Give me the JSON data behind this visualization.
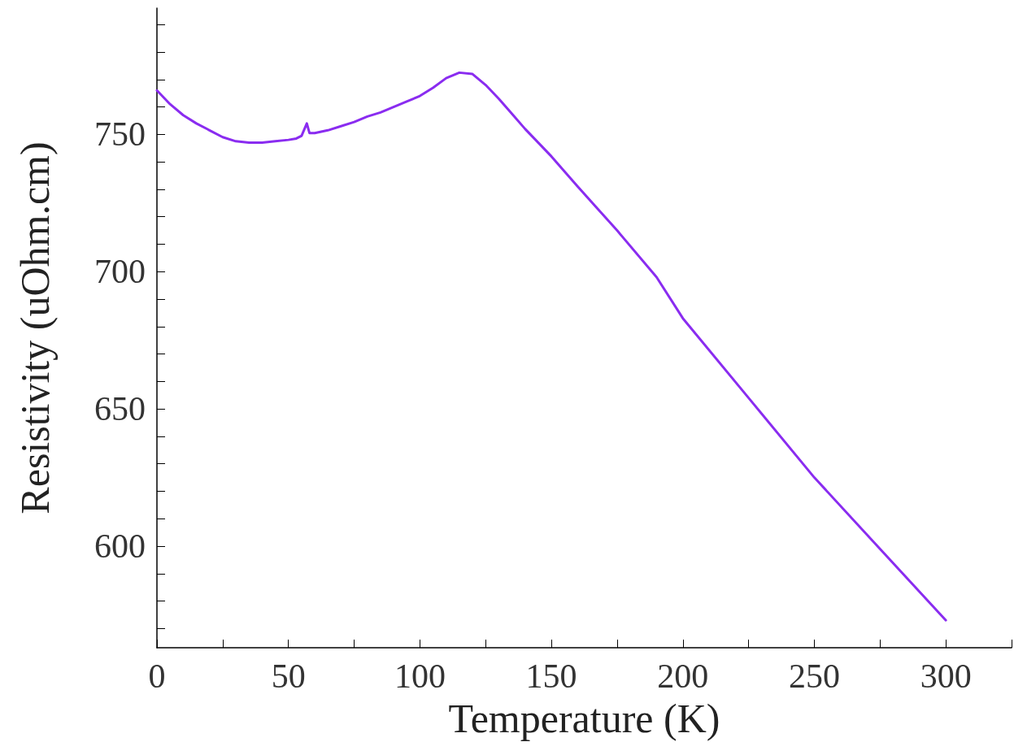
{
  "chart_data": {
    "type": "line",
    "xlabel": "Temperature (K)",
    "ylabel": "Resistivity (uOhm.cm)",
    "x": [
      0,
      5,
      10,
      15,
      20,
      25,
      30,
      35,
      40,
      45,
      50,
      53,
      55,
      57,
      58,
      60,
      65,
      70,
      75,
      80,
      85,
      90,
      95,
      100,
      105,
      110,
      115,
      120,
      125,
      130,
      135,
      140,
      150,
      160,
      175,
      190,
      200,
      225,
      250,
      275,
      300
    ],
    "series": [
      {
        "color": "#8a2cf0",
        "values": [
          766,
          761,
          757,
          754,
          751.5,
          749,
          747.5,
          747,
          747,
          747.5,
          748,
          748.5,
          749.5,
          754,
          750.5,
          750.5,
          751.5,
          753,
          754.5,
          756.5,
          758,
          760,
          762,
          764,
          767,
          770.5,
          772.5,
          772,
          768,
          763,
          757.5,
          752,
          742,
          731,
          715,
          698,
          683,
          654,
          625,
          599,
          573
        ]
      }
    ],
    "xlim": [
      0,
      325
    ],
    "ylim": [
      563,
      796
    ],
    "xticks": [
      0,
      {
        "value": 25,
        "label": null
      },
      50,
      {
        "value": 75,
        "label": null
      },
      100,
      {
        "value": 125,
        "label": null
      },
      150,
      {
        "value": 175,
        "label": null
      },
      200,
      {
        "value": 225,
        "label": null
      },
      250,
      {
        "value": 275,
        "label": null
      },
      300,
      {
        "value": 325,
        "label": null
      }
    ],
    "yticks": [
      {
        "value": 570,
        "label": null
      },
      {
        "value": 580,
        "label": null
      },
      {
        "value": 590,
        "label": null
      },
      600,
      {
        "value": 610,
        "label": null
      },
      {
        "value": 620,
        "label": null
      },
      {
        "value": 630,
        "label": null
      },
      {
        "value": 640,
        "label": null
      },
      650,
      {
        "value": 660,
        "label": null
      },
      {
        "value": 670,
        "label": null
      },
      {
        "value": 680,
        "label": null
      },
      {
        "value": 690,
        "label": null
      },
      700,
      {
        "value": 710,
        "label": null
      },
      {
        "value": 720,
        "label": null
      },
      {
        "value": 730,
        "label": null
      },
      {
        "value": 740,
        "label": null
      },
      750,
      {
        "value": 760,
        "label": null
      },
      {
        "value": 770,
        "label": null
      },
      {
        "value": 780,
        "label": null
      },
      {
        "value": 790,
        "label": null
      }
    ],
    "grid": false,
    "marker": "none",
    "line_style": "solid"
  }
}
